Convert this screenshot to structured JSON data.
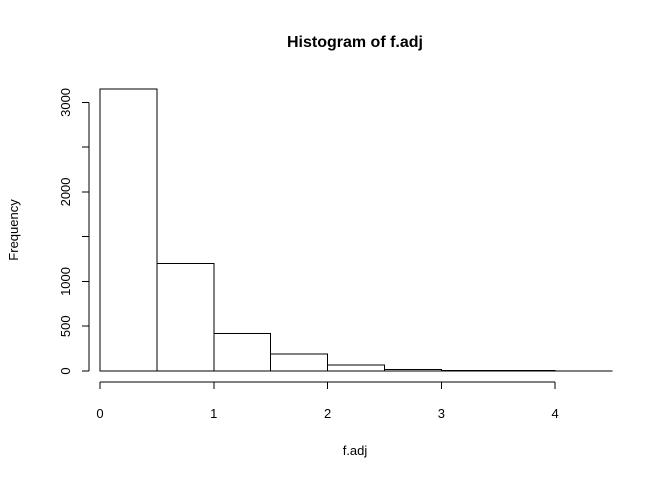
{
  "chart_data": {
    "type": "bar",
    "title": "Histogram of f.adj",
    "xlabel": "f.adj",
    "ylabel": "Frequency",
    "bin_edges": [
      0,
      0.5,
      1,
      1.5,
      2,
      2.5,
      3,
      3.5,
      4,
      4.5
    ],
    "values": [
      3150,
      1200,
      420,
      190,
      65,
      15,
      5,
      3,
      2
    ],
    "xlim": [
      0,
      4.5
    ],
    "ylim": [
      0,
      3150
    ],
    "x_ticks": [
      0,
      1,
      2,
      3,
      4
    ],
    "x_tick_labels": [
      "0",
      "1",
      "2",
      "3",
      "4"
    ],
    "y_ticks": [
      0,
      500,
      1000,
      1500,
      2000,
      2500,
      3000
    ],
    "y_tick_labels": [
      "0",
      "500",
      "1000",
      "",
      "2000",
      "",
      "3000"
    ],
    "grid": false,
    "bar_fill": "#ffffff",
    "bar_stroke": "#000000"
  }
}
